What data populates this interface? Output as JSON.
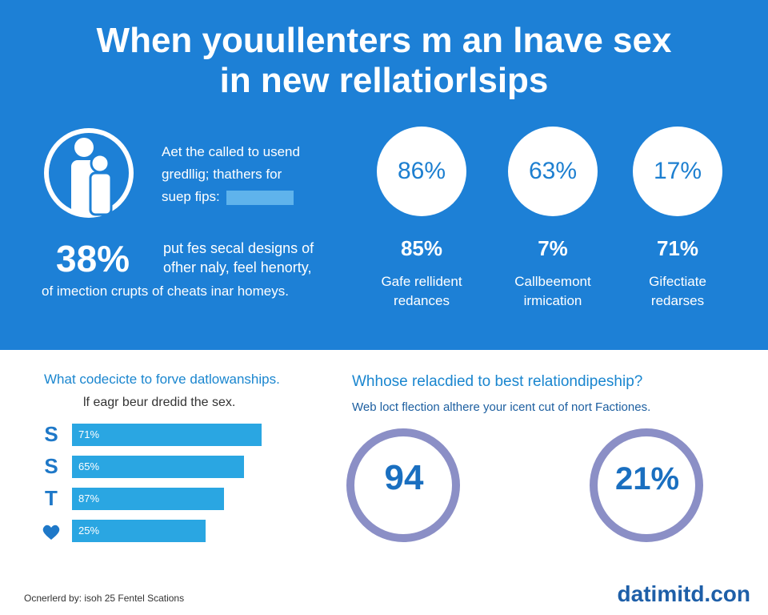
{
  "header": {
    "title_line1": "When youullenters m an lnave sex",
    "title_line2": "in new rellatiorlsips"
  },
  "intro": {
    "lines": [
      "Aet the called to usend",
      "gredllig; thathers for",
      "suep fips:"
    ]
  },
  "highlight": {
    "stat": "38%",
    "lines": [
      "put fes secal designs of",
      "ofher naly, feel henorty,"
    ],
    "caption": "of imection crupts of cheats inar homeys."
  },
  "circles": [
    {
      "value": "86%",
      "stat": "85%",
      "label": [
        "Gafe rellident",
        "redances"
      ]
    },
    {
      "value": "63%",
      "stat": "7%",
      "label": [
        "Callbeemont",
        "irmication"
      ]
    },
    {
      "value": "17%",
      "stat": "71%",
      "label": [
        "Gifectiate",
        "redarses"
      ]
    }
  ],
  "left_panel": {
    "title": "What codecicte to forve datlowanships.",
    "subtitle": "lf eagr beur dredid the sex.",
    "bars": [
      {
        "icon": "S",
        "label": "71%"
      },
      {
        "icon": "S",
        "label": "65%"
      },
      {
        "icon": "T",
        "label": "87%"
      },
      {
        "icon": null,
        "label": "25%"
      }
    ]
  },
  "right_panel": {
    "title": "Whhose relacdied to best relationdipeship?",
    "subtitle": "Web loct flection althere your icent cut of nort Factiones.",
    "donuts": [
      "94",
      "21%"
    ]
  },
  "footer": {
    "credit": "Ocnerlerd by: isoh 25 Fentel Scations",
    "brand": "datimitd.con"
  }
}
